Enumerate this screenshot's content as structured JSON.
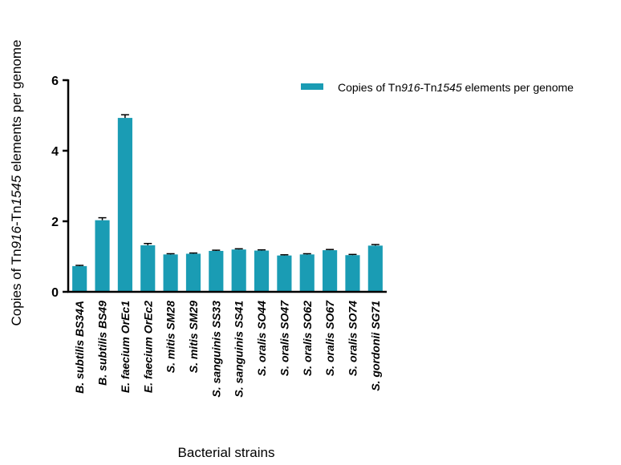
{
  "chart_data": {
    "type": "bar",
    "categories": [
      "B. subtilis BS34A",
      "B. subtilis BS49",
      "E. faecium OrEc1",
      "E. faecium OrEc2",
      "S. mitis SM28",
      "S. mitis SM29",
      "S. sanguinis SS33",
      "S. sanguinis SS41",
      "S. oralis SO44",
      "S. oralis SO47",
      "S. oralis SO62",
      "S. oralis SO67",
      "S. oralis SO74",
      "S. gordonii SG71"
    ],
    "series": [
      {
        "name": "Copies of Tn916-Tn1545 elements per genome",
        "values": [
          0.73,
          2.03,
          4.93,
          1.32,
          1.06,
          1.08,
          1.16,
          1.2,
          1.17,
          1.03,
          1.06,
          1.18,
          1.04,
          1.31
        ],
        "errors": [
          0.02,
          0.07,
          0.09,
          0.05,
          0.02,
          0.02,
          0.02,
          0.02,
          0.02,
          0.02,
          0.02,
          0.02,
          0.02,
          0.03
        ],
        "color": "#1a9cb4"
      }
    ],
    "ylim": [
      0,
      6
    ],
    "yticks": [
      "0",
      "2",
      "4",
      "6"
    ],
    "ylabel_parts": {
      "p1": "Copies of Tn",
      "p2": "916",
      "p3": "-Tn",
      "p4": "1545",
      "p5": " elements per genome"
    },
    "xlabel": "Bacterial strains",
    "legend_position": "top-right",
    "grid": false
  }
}
